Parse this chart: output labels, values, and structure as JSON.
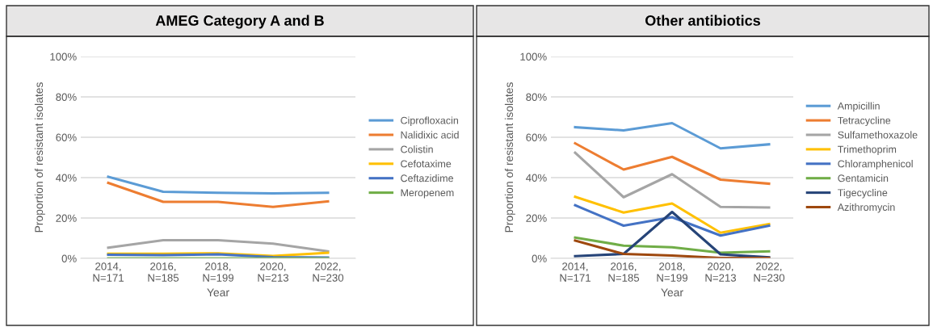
{
  "chart_data": [
    {
      "type": "line",
      "title": "AMEG Category A and B",
      "xlabel": "Year",
      "ylabel": "Proportion of resistant isolates",
      "categories": [
        "2014,\nN=171",
        "2016,\nN=185",
        "2018,\nN=199",
        "2020,\nN=213",
        "2022,\nN=230"
      ],
      "ylim": [
        0,
        100
      ],
      "yticks": [
        {
          "value": 0,
          "label": "0%"
        },
        {
          "value": 20,
          "label": "20%"
        },
        {
          "value": 40,
          "label": "40%"
        },
        {
          "value": 60,
          "label": "60%"
        },
        {
          "value": 80,
          "label": "80%"
        },
        {
          "value": 100,
          "label": "100%"
        }
      ],
      "grid": "y",
      "legend": "right",
      "marker": "none",
      "line_style": "solid",
      "series": [
        {
          "name": "Ciprofloxacin",
          "color": "#5b9bd5",
          "values": [
            40.4,
            33,
            32.5,
            32.2,
            32.5
          ]
        },
        {
          "name": "Nalidixic acid",
          "color": "#ed7d31",
          "values": [
            37.4,
            28,
            28,
            25.5,
            28.2
          ]
        },
        {
          "name": "Colistin",
          "color": "#a5a5a5",
          "values": [
            5.3,
            9,
            9,
            7.3,
            3.5
          ]
        },
        {
          "name": "Cefotaxime",
          "color": "#ffc000",
          "values": [
            2.3,
            2.3,
            2.5,
            1.2,
            2.8
          ]
        },
        {
          "name": "Ceftazidime",
          "color": "#4472c4",
          "values": [
            1.8,
            1.6,
            2.0,
            0.6,
            0.4
          ]
        },
        {
          "name": "Meropenem",
          "color": "#70ad47",
          "values": [
            0,
            0,
            0,
            0,
            0
          ]
        }
      ]
    },
    {
      "type": "line",
      "title": "Other antibiotics",
      "xlabel": "Year",
      "ylabel": "Proportion of resistant isolates",
      "categories": [
        "2014,\nN=171",
        "2016,\nN=185",
        "2018,\nN=199",
        "2020,\nN=213",
        "2022,\nN=230"
      ],
      "ylim": [
        0,
        100
      ],
      "yticks": [
        {
          "value": 0,
          "label": "0%"
        },
        {
          "value": 20,
          "label": "20%"
        },
        {
          "value": 40,
          "label": "40%"
        },
        {
          "value": 60,
          "label": "60%"
        },
        {
          "value": 80,
          "label": "80%"
        },
        {
          "value": 100,
          "label": "100%"
        }
      ],
      "grid": "y",
      "legend": "right",
      "marker": "none",
      "line_style": "solid",
      "series": [
        {
          "name": "Ampicillin",
          "color": "#5b9bd5",
          "values": [
            65,
            63.4,
            67,
            54.5,
            56.5
          ]
        },
        {
          "name": "Tetracycline",
          "color": "#ed7d31",
          "values": [
            57,
            44,
            50.3,
            39,
            37
          ]
        },
        {
          "name": "Sulfamethoxazole",
          "color": "#a5a5a5",
          "values": [
            52.3,
            30.3,
            41.7,
            25.5,
            25.2
          ]
        },
        {
          "name": "Trimethoprim",
          "color": "#ffc000",
          "values": [
            30.5,
            22.7,
            27.2,
            12.7,
            17
          ]
        },
        {
          "name": "Chloramphenicol",
          "color": "#4472c4",
          "values": [
            26.3,
            16.2,
            20.4,
            11.3,
            16.2
          ]
        },
        {
          "name": "Gentamicin",
          "color": "#70ad47",
          "values": [
            10.3,
            6.3,
            5.5,
            2.8,
            3.5
          ]
        },
        {
          "name": "Tigecycline",
          "color": "#264478",
          "values": [
            1.1,
            2.2,
            23,
            2.0,
            0.5
          ]
        },
        {
          "name": "Azithromycin",
          "color": "#9e480e",
          "values": [
            8.8,
            2.2,
            1.4,
            0.2,
            0.2
          ]
        }
      ]
    }
  ]
}
